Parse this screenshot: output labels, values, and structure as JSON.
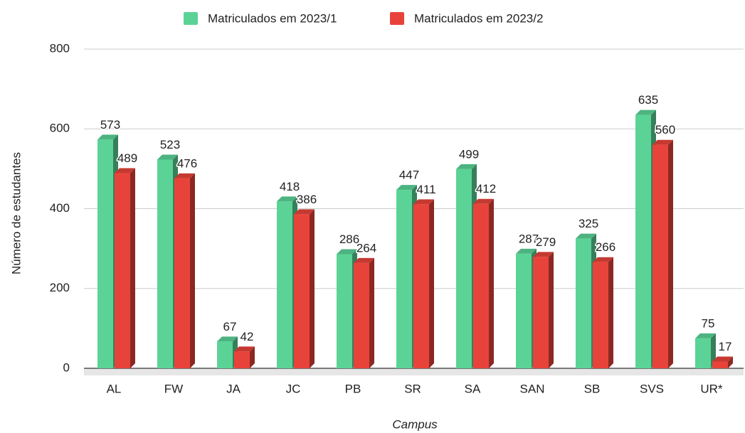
{
  "chart_data": {
    "type": "bar",
    "x_label": "Campus",
    "y_label": "Número de estudantes",
    "categories": [
      "AL",
      "FW",
      "JA",
      "JC",
      "PB",
      "SR",
      "SA",
      "SAN",
      "SB",
      "SVS",
      "UR*"
    ],
    "series": [
      {
        "name": "Matriculados em 2023/1",
        "color": "#5bd396",
        "values": [
          573,
          523,
          67,
          418,
          286,
          447,
          499,
          287,
          325,
          635,
          75
        ]
      },
      {
        "name": "Matriculados em 2023/2",
        "color": "#e8433a",
        "values": [
          489,
          476,
          42,
          386,
          264,
          411,
          412,
          279,
          266,
          560,
          17
        ]
      }
    ],
    "ylim": [
      0,
      800
    ],
    "yticks": [
      0,
      200,
      400,
      600,
      800
    ],
    "grid": true,
    "legend": "top"
  }
}
